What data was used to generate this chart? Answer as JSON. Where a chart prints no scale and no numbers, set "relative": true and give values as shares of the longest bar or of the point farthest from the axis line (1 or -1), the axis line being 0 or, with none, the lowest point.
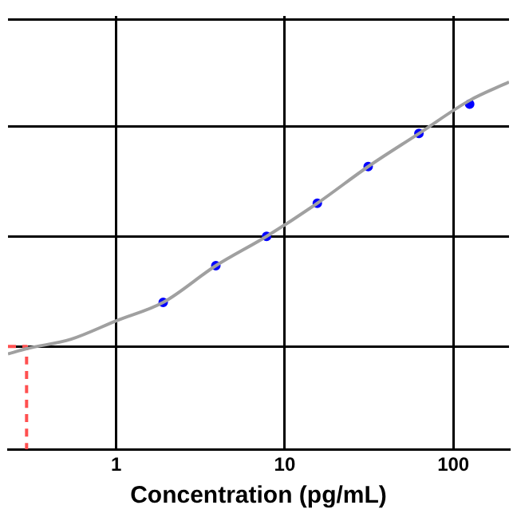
{
  "chart_data": {
    "type": "scatter",
    "xlabel": "Concentration (pg/mL)",
    "relative": true,
    "log": "x",
    "xlim": [
      0.228,
      214
    ],
    "xticks": [
      1,
      10,
      100
    ],
    "grid": true,
    "legend": false,
    "tick_labels": "x",
    "series": [
      {
        "type": "line",
        "color": "#a0a0a0",
        "marker": "none",
        "line_style": "solid",
        "x": [
          0.228,
          0.294,
          0.54,
          1,
          1.9,
          3.9,
          7.8,
          15.6,
          31.25,
          62.5,
          125,
          214
        ],
        "values": [
          0.26,
          0.274,
          0.3,
          0.35,
          0.4,
          0.5,
          0.58,
          0.67,
          0.77,
          0.86,
          0.95,
          1.0
        ]
      },
      {
        "type": "line",
        "color": "#ff5050",
        "marker": "none",
        "line_style": "dashed",
        "x": [
          0.228,
          0.294,
          0.294
        ],
        "values": [
          0.28,
          0.28,
          0
        ]
      },
      {
        "color": "#0000ff",
        "marker": "circle",
        "x": [
          1.9,
          3.9,
          7.8,
          15.6,
          31.25,
          62.5,
          125
        ],
        "values": [
          0.4,
          0.5,
          0.58,
          0.67,
          0.77,
          0.86,
          0.94
        ]
      }
    ]
  }
}
